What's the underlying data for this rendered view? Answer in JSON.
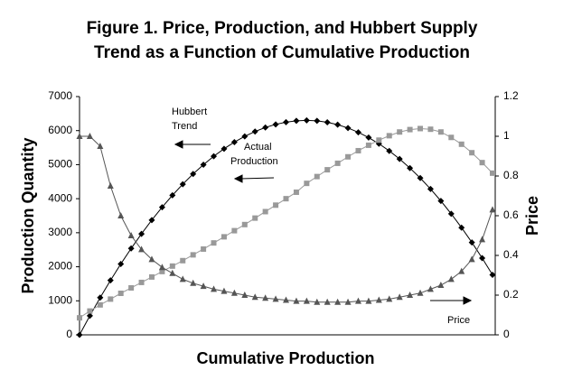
{
  "chart_data": {
    "type": "line",
    "title": [
      "Figure 1. Price, Production, and Hubbert Supply",
      "Trend as a Function of Cumulative Production"
    ],
    "x_label": "Cumulative Production",
    "y_label": "Production Quantity",
    "y2_label": "Price",
    "categories": [
      null,
      null,
      null,
      null,
      null,
      null,
      null,
      null,
      null,
      null,
      null,
      null,
      null,
      null,
      null,
      null,
      null,
      null,
      null,
      null,
      null,
      null,
      null,
      null,
      null,
      null,
      null,
      null,
      null,
      null,
      null,
      null,
      null,
      null,
      null,
      null,
      null,
      null,
      null,
      null,
      null
    ],
    "ylim": [
      0,
      7000
    ],
    "yticks": [
      0,
      1000,
      2000,
      3000,
      4000,
      5000,
      6000,
      7000
    ],
    "y2lim": [
      0,
      1.2
    ],
    "y2ticks": [
      0,
      0.2,
      0.4,
      0.6,
      0.8,
      1,
      1.2
    ],
    "grid": false,
    "annotations": [
      {
        "lines": [
          "Hubbert",
          "Trend"
        ]
      },
      {
        "lines": [
          "Actual",
          "Production"
        ]
      },
      {
        "lines": [
          "Price"
        ]
      }
    ],
    "series": [
      {
        "name": "Hubbert Trend",
        "color": "#000000",
        "marker": "diamond",
        "values": [
          0,
          559,
          1094,
          1601,
          2083,
          2538,
          2968,
          3371,
          3749,
          4100,
          4426,
          4725,
          4998,
          5246,
          5467,
          5662,
          5831,
          5974,
          6092,
          6183,
          6248,
          6287,
          6300,
          6286,
          6244,
          6174,
          6076,
          5950,
          5796,
          5614,
          5404,
          5166,
          4900,
          4606,
          4284,
          3934,
          3556,
          3150,
          2716,
          2254,
          1764
        ]
      },
      {
        "name": "Actual Production",
        "color": "#999999",
        "marker": "square",
        "values": [
          500,
          700,
          880,
          1050,
          1220,
          1380,
          1540,
          1700,
          1860,
          2020,
          2180,
          2350,
          2520,
          2700,
          2880,
          3060,
          3240,
          3430,
          3620,
          3810,
          4000,
          4190,
          4450,
          4650,
          4850,
          5040,
          5230,
          5410,
          5570,
          5720,
          5850,
          5960,
          6030,
          6060,
          6040,
          5960,
          5800,
          5600,
          5350,
          5060,
          4750
        ]
      },
      {
        "name": "Price",
        "color": "#555555",
        "marker": "triangle",
        "axis": "y2",
        "values": [
          1,
          1,
          0.95,
          0.75,
          0.6,
          0.5,
          0.43,
          0.38,
          0.34,
          0.31,
          0.28,
          0.26,
          0.245,
          0.23,
          0.22,
          0.21,
          0.2,
          0.19,
          0.185,
          0.18,
          0.175,
          0.17,
          0.17,
          0.165,
          0.165,
          0.165,
          0.165,
          0.17,
          0.17,
          0.175,
          0.18,
          0.19,
          0.2,
          0.21,
          0.23,
          0.25,
          0.28,
          0.32,
          0.38,
          0.48,
          0.63
        ]
      }
    ]
  }
}
